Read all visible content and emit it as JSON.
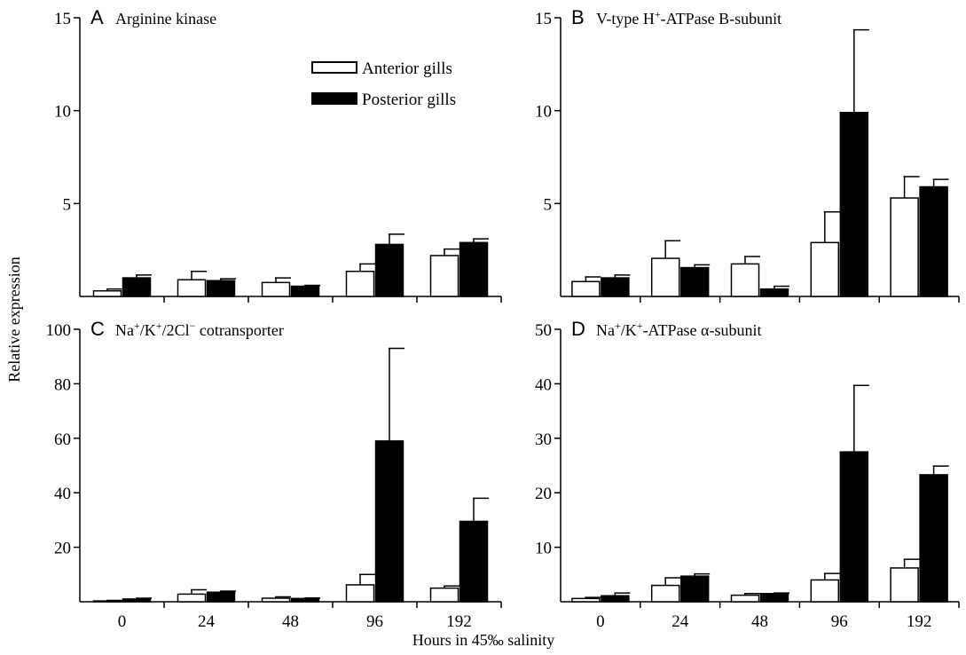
{
  "chart_data": {
    "type": "bar",
    "xlabel": "Hours in 45‰ salinity",
    "ylabel": "Relative expression",
    "legend": {
      "placement": "top-right of panel A",
      "entries": [
        {
          "label": "Anterior gills",
          "color": "#ffffff"
        },
        {
          "label": "Posterior gills",
          "color": "#000000"
        }
      ]
    },
    "categories": [
      "0",
      "24",
      "48",
      "96",
      "192"
    ],
    "panels": [
      {
        "letter": "A",
        "title_parts": [
          {
            "t": "Arginine kinase"
          }
        ],
        "ylim": [
          0,
          15
        ],
        "yticks": [
          5,
          10,
          15
        ],
        "series": [
          {
            "name": "Anterior gills",
            "values": [
              0.3,
              0.9,
              0.75,
              1.35,
              2.2
            ],
            "errors": [
              0.1,
              0.45,
              0.25,
              0.4,
              0.35
            ]
          },
          {
            "name": "Posterior gills",
            "values": [
              1.0,
              0.85,
              0.55,
              2.8,
              2.9
            ],
            "errors": [
              0.15,
              0.1,
              0.05,
              0.55,
              0.2
            ]
          }
        ]
      },
      {
        "letter": "B",
        "title_parts": [
          {
            "t": "V-type H"
          },
          {
            "t": "+",
            "sup": true
          },
          {
            "t": "-ATPase B-subunit"
          }
        ],
        "ylim": [
          0,
          15
        ],
        "yticks": [
          5,
          10,
          15
        ],
        "series": [
          {
            "name": "Anterior gills",
            "values": [
              0.8,
              2.05,
              1.75,
              2.9,
              5.3
            ],
            "errors": [
              0.25,
              0.95,
              0.4,
              1.65,
              1.15
            ]
          },
          {
            "name": "Posterior gills",
            "values": [
              1.0,
              1.55,
              0.4,
              9.9,
              5.9
            ],
            "errors": [
              0.15,
              0.15,
              0.15,
              4.45,
              0.4
            ]
          }
        ]
      },
      {
        "letter": "C",
        "title_parts": [
          {
            "t": "Na"
          },
          {
            "t": "+",
            "sup": true
          },
          {
            "t": "/K"
          },
          {
            "t": "+",
            "sup": true
          },
          {
            "t": "/2Cl"
          },
          {
            "t": "−",
            "sup": true
          },
          {
            "t": " cotransporter"
          }
        ],
        "ylim": [
          0,
          100
        ],
        "yticks": [
          20,
          40,
          60,
          80,
          100
        ],
        "series": [
          {
            "name": "Anterior gills",
            "values": [
              0.3,
              2.8,
              1.3,
              6.2,
              5.0
            ],
            "errors": [
              0.2,
              1.6,
              0.5,
              3.8,
              0.8
            ]
          },
          {
            "name": "Posterior gills",
            "values": [
              1.0,
              3.5,
              1.2,
              59.0,
              29.5
            ],
            "errors": [
              0.3,
              0.4,
              0.2,
              34.0,
              8.5
            ]
          }
        ]
      },
      {
        "letter": "D",
        "title_parts": [
          {
            "t": "Na"
          },
          {
            "t": "+",
            "sup": true
          },
          {
            "t": "/K"
          },
          {
            "t": "+",
            "sup": true
          },
          {
            "t": "-ATPase α-subunit"
          }
        ],
        "ylim": [
          0,
          50
        ],
        "yticks": [
          10,
          20,
          30,
          40,
          50
        ],
        "series": [
          {
            "name": "Anterior gills",
            "values": [
              0.6,
              3.0,
              1.2,
              4.0,
              6.2
            ],
            "errors": [
              0.2,
              1.4,
              0.3,
              1.2,
              1.6
            ]
          },
          {
            "name": "Posterior gills",
            "values": [
              1.1,
              4.7,
              1.5,
              27.5,
              23.3
            ],
            "errors": [
              0.5,
              0.4,
              0.1,
              12.2,
              1.6
            ]
          }
        ]
      }
    ]
  }
}
